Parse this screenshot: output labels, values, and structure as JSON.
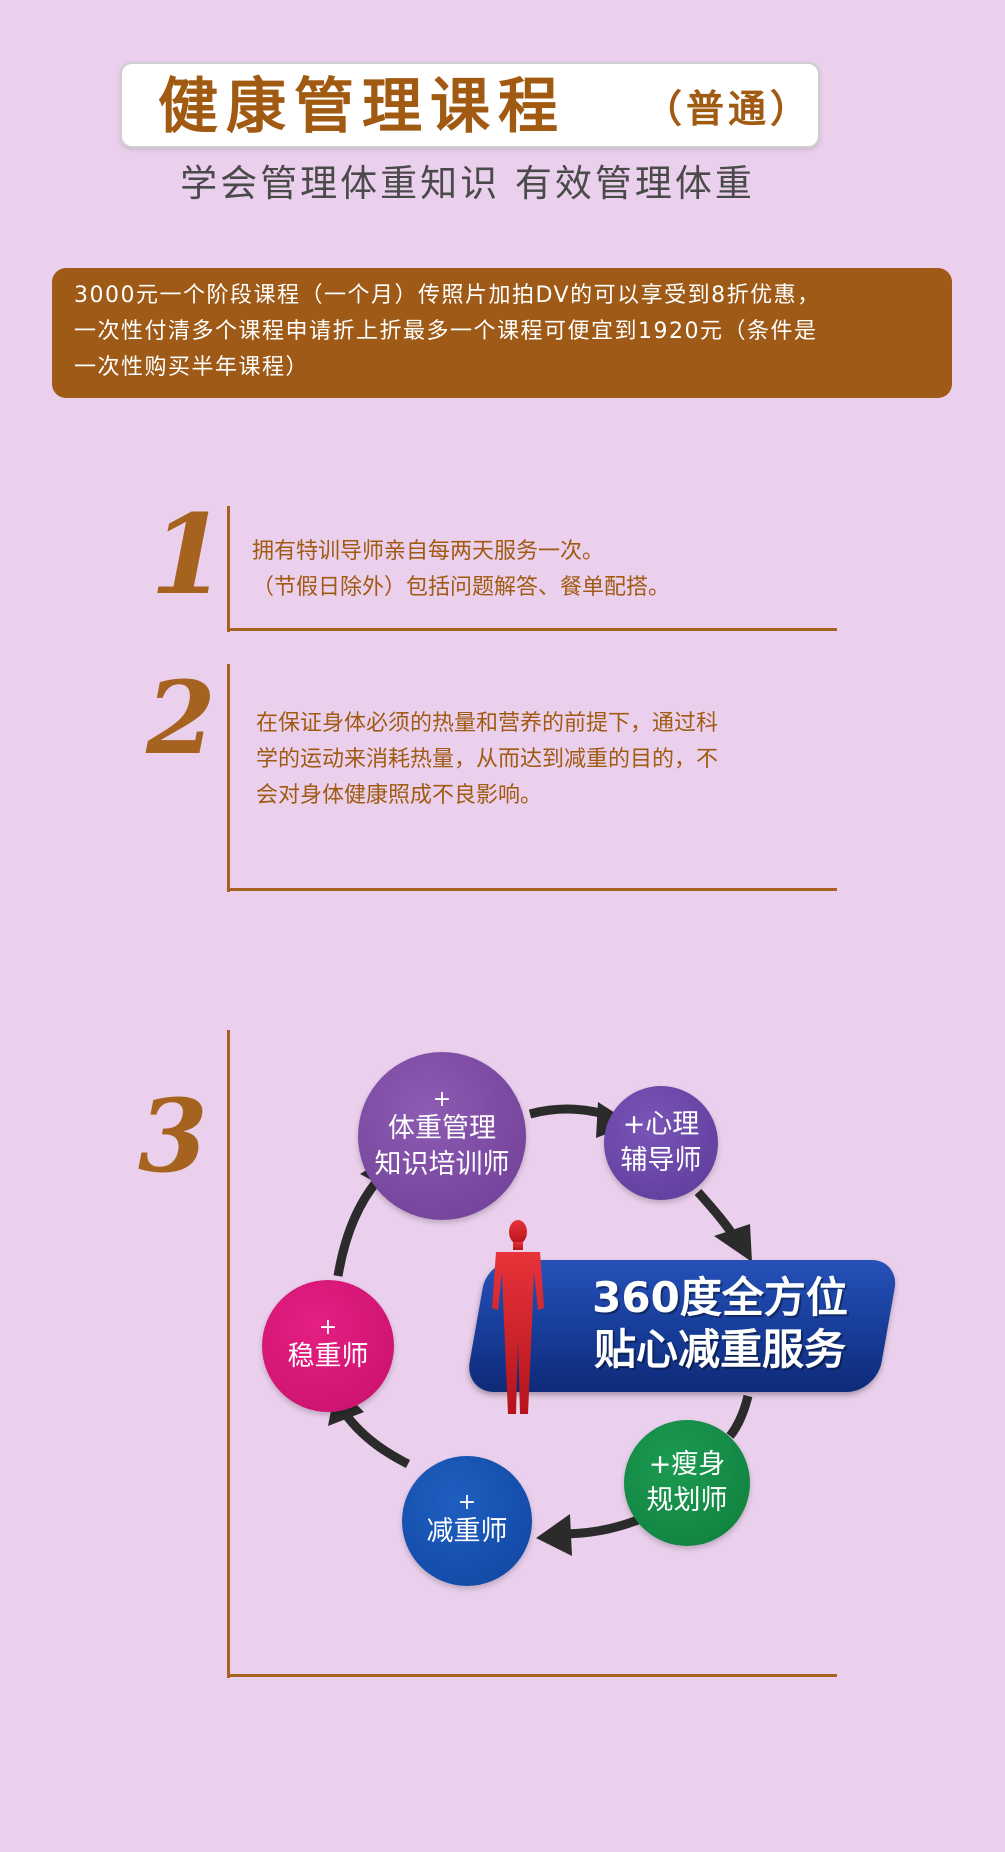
{
  "header": {
    "title": "健康管理课程",
    "title_note": "（普通）",
    "subtitle": "学会管理体重知识  有效管理体重"
  },
  "info": {
    "lines": [
      "3000元一个阶段课程（一个月）传照片加拍DV的可以享受到8折优惠，",
      "一次性付清多个课程申请折上折最多一个课程可便宜到1920元（条件是",
      "一次性购买半年课程）"
    ]
  },
  "sections": [
    {
      "number": "1",
      "lines": [
        "拥有特训导师亲自每两天服务一次。",
        "（节假日除外）包括问题解答、餐单配搭。"
      ]
    },
    {
      "number": "2",
      "lines": [
        "在保证身体必须的热量和营养的前提下，通过科",
        "学的运动来消耗热量，从而达到减重的目的，不",
        "会对身体健康照成不良影响。"
      ]
    },
    {
      "number": "3"
    }
  ],
  "diagram": {
    "center_line1": "360度全方位",
    "center_line2": "贴心减重服务",
    "nodes": [
      {
        "plus": "+",
        "line1": "体重管理",
        "line2": "知识培训师"
      },
      {
        "plus": "",
        "line1": "+心理",
        "line2": "辅导师"
      },
      {
        "plus": "",
        "line1": "+瘦身",
        "line2": "规划师"
      },
      {
        "plus": "+",
        "line1": "减重师",
        "line2": ""
      },
      {
        "plus": "+",
        "line1": "稳重师",
        "line2": ""
      }
    ]
  },
  "colors": {
    "background": "#ead0ec",
    "accent_brown": "#a05a12",
    "banner_blue": "#173c98",
    "figure_red": "#d21e26"
  }
}
